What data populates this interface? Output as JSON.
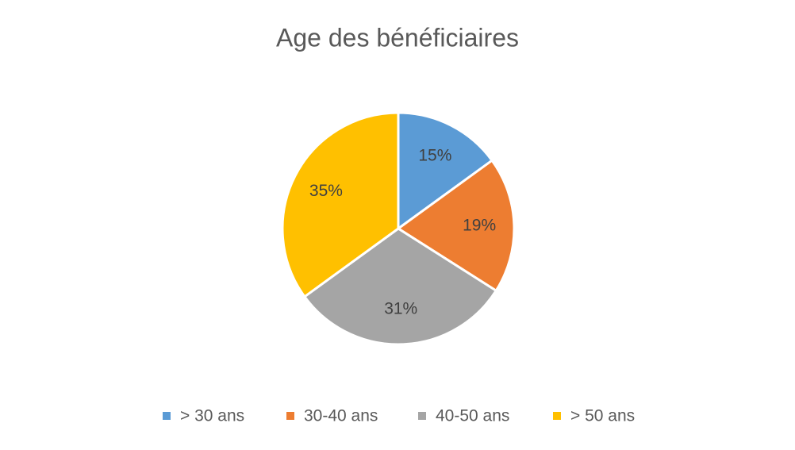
{
  "chart_data": {
    "type": "pie",
    "title": "Age des bénéficiaires",
    "categories": [
      "> 30 ans",
      "30-40 ans",
      "40-50 ans",
      "> 50 ans"
    ],
    "values": [
      15,
      19,
      31,
      35
    ],
    "value_labels": [
      "15%",
      "19%",
      "31%",
      "35%"
    ],
    "colors": [
      "#5b9bd5",
      "#ed7d31",
      "#a5a5a5",
      "#ffc000"
    ],
    "legend": "bottom"
  }
}
